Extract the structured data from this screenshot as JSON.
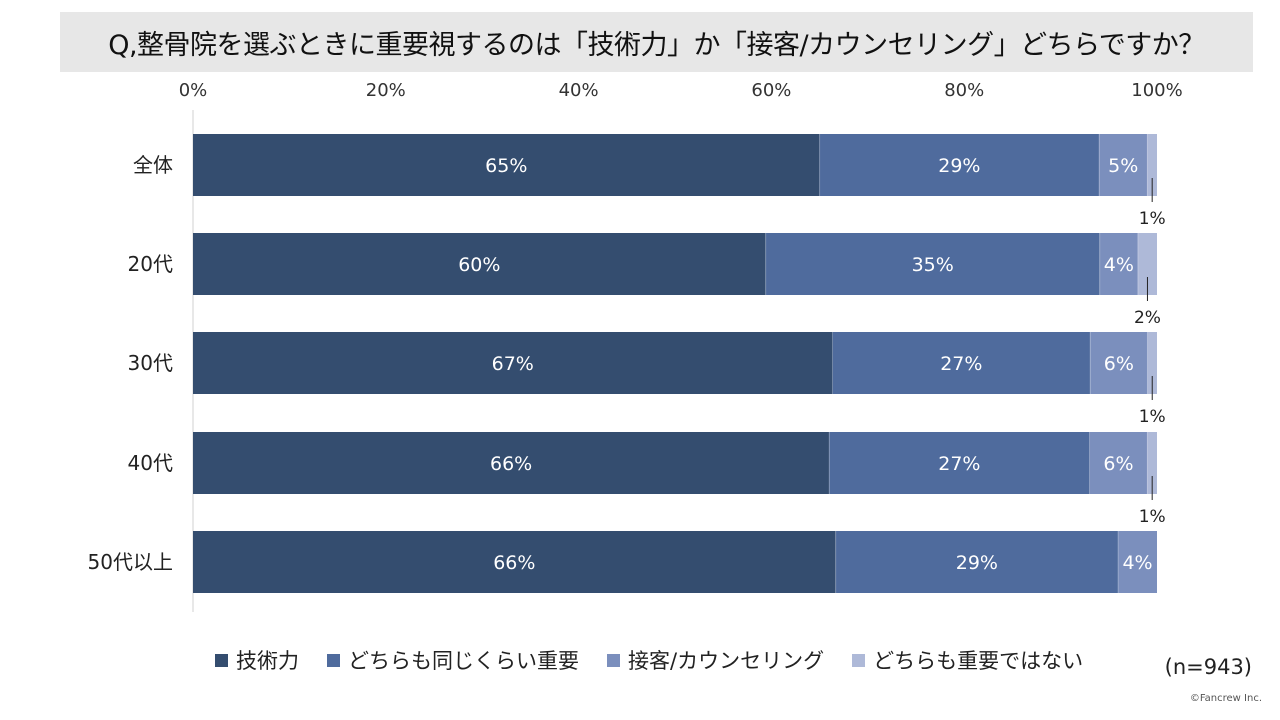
{
  "title": "Q,整骨院を選ぶときに重要視するのは「技術力」か「接客/カウンセリング」どちらですか？",
  "sample_size": "(n=943)",
  "copyright": "©Fancrew Inc.",
  "colors": [
    "#344d6f",
    "#4f6b9d",
    "#7b8fbd",
    "#aeb9d8"
  ],
  "chart_data": {
    "type": "bar",
    "orientation": "horizontal",
    "stacked": "percent",
    "categories": [
      "全体",
      "20代",
      "30代",
      "40代",
      "50代以上"
    ],
    "series": [
      {
        "name": "技術力",
        "values": [
          65,
          60,
          67,
          66,
          66
        ],
        "labels": [
          "65%",
          "60%",
          "67%",
          "66%",
          "66%"
        ]
      },
      {
        "name": "どちらも同じくらい重要",
        "values": [
          29,
          35,
          27,
          27,
          29
        ],
        "labels": [
          "29%",
          "35%",
          "27%",
          "27%",
          "29%"
        ]
      },
      {
        "name": "接客/カウンセリング",
        "values": [
          5,
          4,
          6,
          6,
          4
        ],
        "labels": [
          "5%",
          "4%",
          "6%",
          "6%",
          "4%"
        ]
      },
      {
        "name": "どちらも重要ではない",
        "values": [
          1,
          2,
          1,
          1,
          0
        ],
        "labels": [
          "1%",
          "2%",
          "1%",
          "1%",
          ""
        ]
      }
    ],
    "xlim": [
      0,
      100
    ],
    "x_ticks": [
      "0%",
      "20%",
      "40%",
      "60%",
      "80%",
      "100%"
    ],
    "legend_position": "bottom",
    "grid": false
  }
}
